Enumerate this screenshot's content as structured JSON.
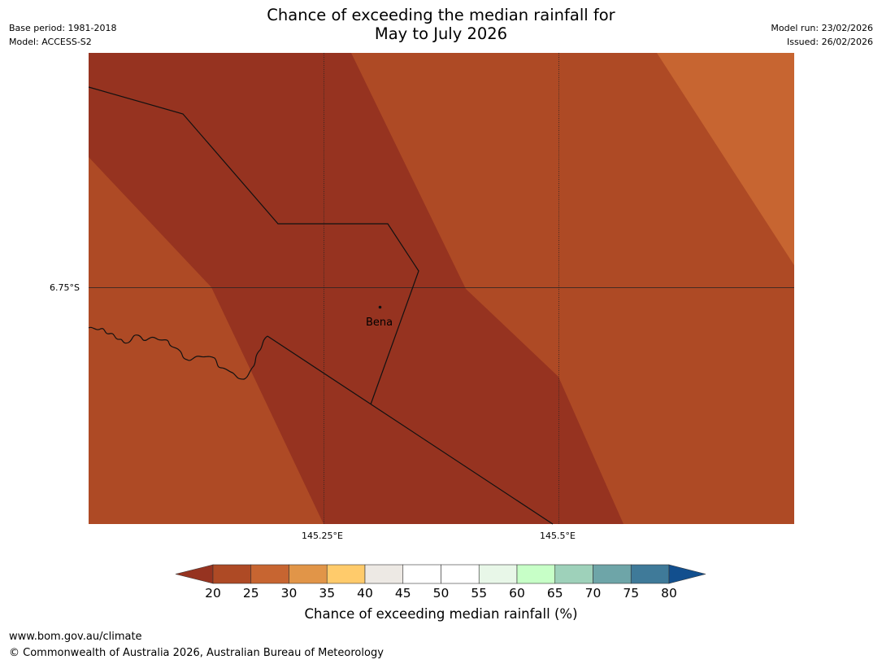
{
  "header": {
    "title_line1": "Chance of exceeding the median rainfall for",
    "title_line2": "May to July 2026",
    "base_period": "Base period: 1981-2018",
    "model": "Model: ACCESS-S2",
    "model_run": "Model run: 23/02/2026",
    "issued": "Issued: 26/02/2026"
  },
  "map": {
    "latitude_label": "6.75°S",
    "longitude_labels": [
      "145.25°E",
      "145.5°E"
    ],
    "place": {
      "name": "Bena"
    },
    "colors": {
      "band_20_25_dark": "#963320",
      "band_25_30": "#AE4A25",
      "band_30_35": "#C76531",
      "boundary": "#111111",
      "gridline": "#222222"
    }
  },
  "colorbar": {
    "label": "Chance of exceeding median rainfall (%)",
    "ticks": [
      "20",
      "25",
      "30",
      "35",
      "40",
      "45",
      "50",
      "55",
      "60",
      "65",
      "70",
      "75",
      "80"
    ],
    "under_color": "#963320",
    "over_color": "#124F8E",
    "colors": [
      "#AE4A25",
      "#C76531",
      "#E19548",
      "#FFCB6B",
      "#EDE9E4",
      "#FFFFFF",
      "#FFFFFF",
      "#E8F7E8",
      "#C7FFC7",
      "#9ED1BA",
      "#6EA5A8",
      "#3F7A99"
    ]
  },
  "footer": {
    "url": "www.bom.gov.au/climate",
    "copyright": "© Commonwealth of Australia 2026, Australian Bureau of Meteorology"
  }
}
